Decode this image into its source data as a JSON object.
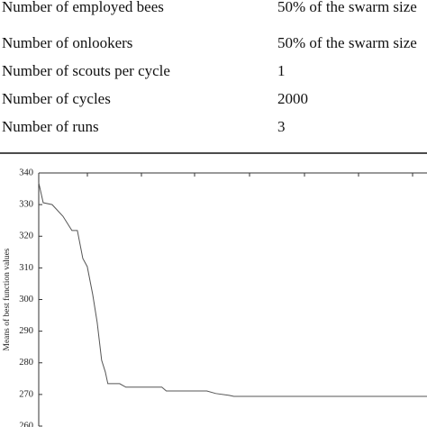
{
  "table": {
    "rows": [
      [
        "Number of employed bees",
        "50% of the swarm size"
      ],
      [
        "Number of onlookers",
        "50% of the swarm size"
      ],
      [
        "Number of scouts per cycle",
        "1"
      ],
      [
        "Number of cycles",
        "2000"
      ],
      [
        "Number of runs",
        "3"
      ]
    ]
  },
  "chart_data": {
    "type": "line",
    "ylabel": "Means of best function values",
    "x": [
      0,
      23,
      69,
      125,
      171,
      199,
      227,
      250,
      278,
      301,
      324,
      343,
      356,
      417,
      449,
      634,
      657,
      866,
      912,
      981,
      1005,
      2000
    ],
    "series": [
      {
        "color": "#555555",
        "values": [
          336.9,
          330.6,
          330,
          326.3,
          321.8,
          321.8,
          313,
          310.4,
          301.6,
          292.8,
          280.8,
          277.1,
          273.4,
          273.4,
          272.3,
          272.3,
          271.1,
          271.1,
          270.3,
          269.7,
          269.4,
          269.4
        ]
      }
    ],
    "xlim": [
      0,
      2000
    ],
    "ylim": [
      260,
      340
    ],
    "yticks": [
      260,
      270,
      280,
      290,
      300,
      310,
      320,
      330,
      340
    ]
  }
}
